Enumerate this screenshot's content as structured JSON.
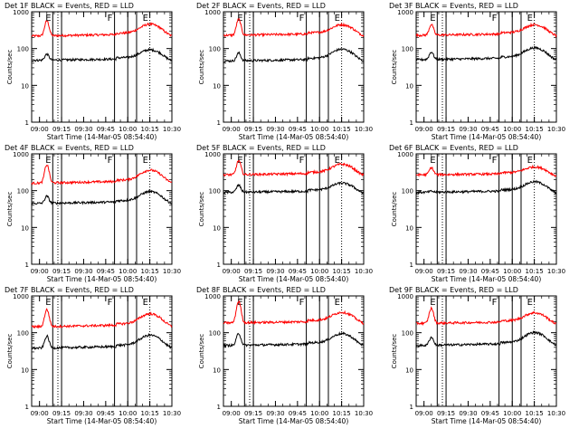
{
  "chart_data": {
    "type": "line",
    "panels": [
      {
        "title": "Det 1F BLACK = Events, RED = LLD",
        "red_base": 220,
        "black_base": 48,
        "red_trend": 1.7,
        "black_trend": 1.6,
        "red_peak": 560,
        "black_peak": 70
      },
      {
        "title": "Det 2F BLACK = Events, RED = LLD",
        "red_base": 230,
        "black_base": 46,
        "red_trend": 1.6,
        "black_trend": 1.7,
        "red_peak": 620,
        "black_peak": 75
      },
      {
        "title": "Det 3F BLACK = Events, RED = LLD",
        "red_base": 230,
        "black_base": 50,
        "red_trend": 1.6,
        "black_trend": 1.7,
        "red_peak": 450,
        "black_peak": 80
      },
      {
        "title": "Det 4F BLACK = Events, RED = LLD",
        "red_base": 160,
        "black_base": 45,
        "red_trend": 1.8,
        "black_trend": 1.7,
        "red_peak": 500,
        "black_peak": 70
      },
      {
        "title": "Det 5F BLACK = Events, RED = LLD",
        "red_base": 270,
        "black_base": 90,
        "red_trend": 1.6,
        "black_trend": 1.5,
        "red_peak": 650,
        "black_peak": 140
      },
      {
        "title": "Det 6F BLACK = Events, RED = LLD",
        "red_base": 270,
        "black_base": 90,
        "red_trend": 1.4,
        "black_trend": 1.6,
        "red_peak": 420,
        "black_peak": 95
      },
      {
        "title": "Det 7F BLACK = Events, RED = LLD",
        "red_base": 145,
        "black_base": 38,
        "red_trend": 1.8,
        "black_trend": 1.8,
        "red_peak": 420,
        "black_peak": 80
      },
      {
        "title": "Det 8F BLACK = Events, RED = LLD",
        "red_base": 185,
        "black_base": 45,
        "red_trend": 1.6,
        "black_trend": 1.7,
        "red_peak": 700,
        "black_peak": 95
      },
      {
        "title": "Det 9F BLACK = Events, RED = LLD",
        "red_base": 180,
        "black_base": 45,
        "red_trend": 1.6,
        "black_trend": 1.8,
        "red_peak": 460,
        "black_peak": 75
      }
    ],
    "x_start": "08:54:40",
    "x_end": "10:30:00",
    "x_ticks": [
      "09:00",
      "09:15",
      "09:30",
      "09:45",
      "10:00",
      "10:15",
      "10:30"
    ],
    "y_ticks": [
      "1",
      "10",
      "100",
      "1000"
    ],
    "ylim": [
      1,
      1000
    ],
    "yscale": "log",
    "xlabel": "Start Time (14-Mar-05 08:54:40)",
    "ylabel": "Counts/sec",
    "markers": [
      {
        "label": "E",
        "time": "09:09:00",
        "style": "solid"
      },
      {
        "label": "F",
        "time": "09:51:00",
        "style": "solid"
      },
      {
        "label": "E",
        "time": "10:15:00",
        "style": "dotted"
      }
    ],
    "extra_lines": [
      {
        "time": "09:12:30",
        "style": "dotted"
      },
      {
        "time": "09:15:00",
        "style": "solid"
      },
      {
        "time": "10:00:00",
        "style": "solid"
      },
      {
        "time": "10:06:00",
        "style": "solid"
      }
    ],
    "series": [
      {
        "name": "BLACK = Events",
        "color": "#000000"
      },
      {
        "name": "RED = LLD",
        "color": "#ff0000"
      }
    ]
  }
}
